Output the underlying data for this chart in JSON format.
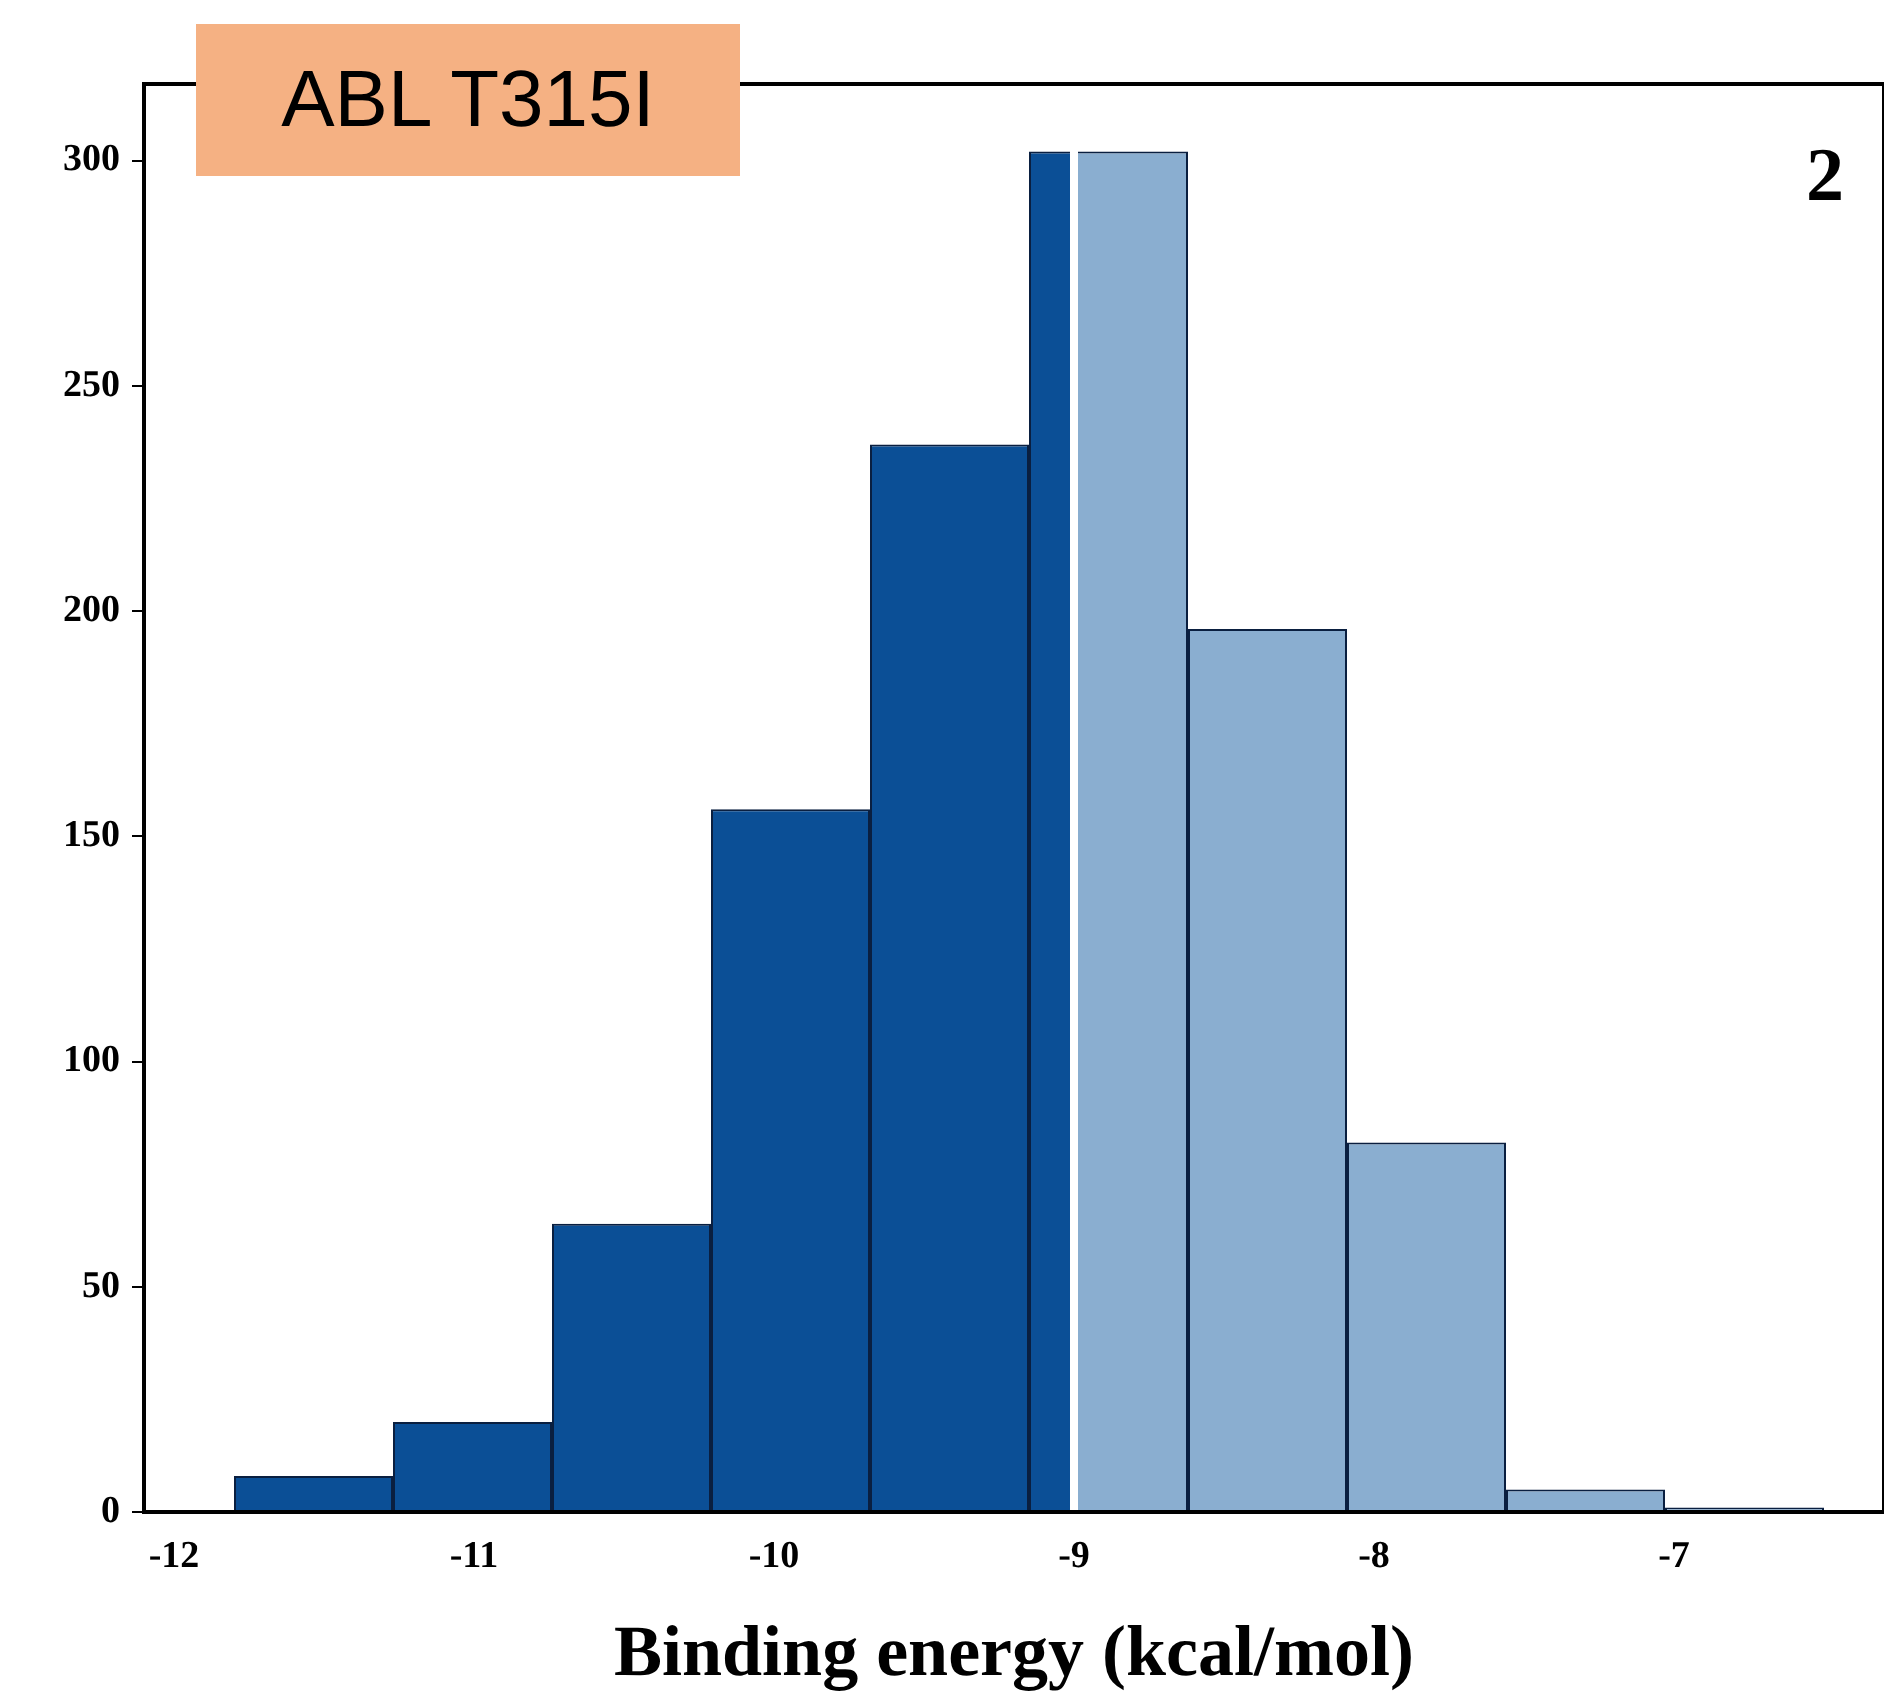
{
  "chart_data": {
    "type": "histogram",
    "xlabel": "Binding energy (kcal/mol)",
    "annotations": [
      "ABL T315I",
      "2"
    ],
    "bins": [
      -11.8,
      -11.27,
      -10.74,
      -10.21,
      -9.68,
      -9.15,
      -9.0,
      -8.62,
      -8.09,
      -7.56,
      -7.03,
      -6.5
    ],
    "values": [
      8,
      20,
      64,
      156,
      237,
      302,
      302,
      196,
      82,
      5,
      1
    ],
    "colors": [
      "#0b4f96",
      "#0b4f96",
      "#0b4f96",
      "#0b4f96",
      "#0b4f96",
      "#0b4f96",
      "#8aaed0",
      "#8aaed0",
      "#8aaed0",
      "#8aaed0",
      "#8aaed0"
    ],
    "xlim": [
      -12.1,
      -6.3
    ],
    "xticks": [
      -12,
      -11,
      -10,
      -9,
      -8,
      -7
    ],
    "ylim": [
      0,
      317
    ],
    "yticks": [
      0,
      50,
      100,
      150,
      200,
      250,
      300
    ],
    "ref_lines": [
      {
        "axis": "x",
        "value": -9.0,
        "color": "#ffffff"
      }
    ],
    "grid": false,
    "legend": false
  }
}
